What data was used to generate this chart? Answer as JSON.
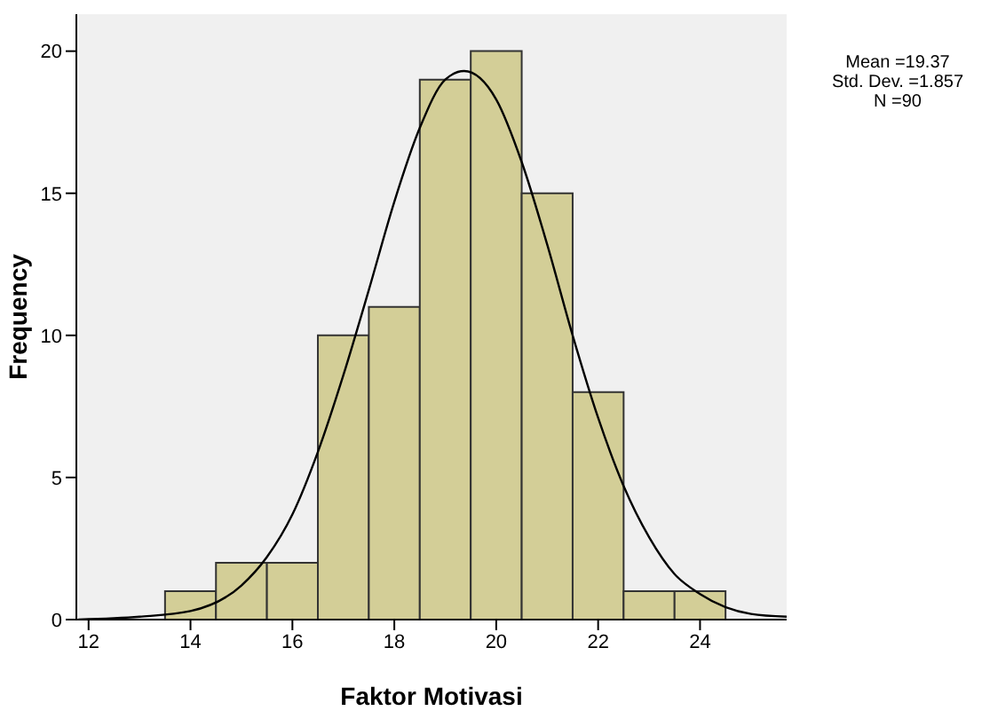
{
  "chart_data": {
    "type": "histogram",
    "xlabel": "Faktor Motivasi",
    "ylabel": "Frequency",
    "bins": [
      13.5,
      14.5,
      15.5,
      16.5,
      17.5,
      18.5,
      19.5,
      20.5,
      21.5,
      22.5,
      23.5,
      24.5
    ],
    "values": [
      1,
      2,
      2,
      10,
      11,
      19,
      20,
      15,
      8,
      1,
      1
    ],
    "color": "#d3ce97",
    "xlim": [
      11.76,
      25.7
    ],
    "xticks": [
      12,
      14,
      16,
      18,
      20,
      22,
      24
    ],
    "ylim": [
      0,
      21.3
    ],
    "yticks": [
      0,
      5,
      10,
      15,
      20
    ],
    "grid": false,
    "legend": false,
    "series": [
      {
        "type": "line",
        "color": "#000000",
        "x": [
          11.8,
          13,
          14,
          15,
          15.5,
          16,
          16.5,
          17,
          17.5,
          18,
          18.5,
          19,
          19.37,
          20,
          20.5,
          21,
          21.5,
          22,
          22.5,
          23,
          23.5,
          24,
          25,
          25.7
        ],
        "values": [
          0,
          0.1,
          0.3,
          1.2,
          2.2,
          3.7,
          5.9,
          8.6,
          11.6,
          14.7,
          17.3,
          19,
          19.3,
          18.3,
          16.1,
          13.2,
          10,
          7.1,
          4.7,
          2.9,
          1.6,
          0.9,
          0.2,
          0.1
        ]
      }
    ],
    "annotations": [
      "Mean =19.37",
      "Std. Dev. =1.857",
      "N =90"
    ]
  }
}
